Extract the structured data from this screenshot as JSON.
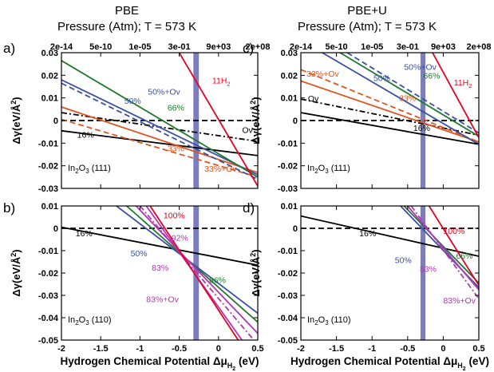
{
  "figure": {
    "col_titles": [
      "PBE",
      "PBE+U"
    ],
    "col_subtitles": [
      "Pressure (Atm); T = 573 K",
      "Pressure (Atm); T = 573 K"
    ],
    "xlabel": "Hydrogen Chemical Potential Δμ",
    "xlabel_sub": "H",
    "xlabel_sub2": "2",
    "xlabel_unit": " (eV)",
    "ylabel": "Δγ(eV/Å",
    "ylabel_sup": "2",
    "ylabel_close": ")"
  },
  "colors": {
    "black": "#000000",
    "red": "#e8001e",
    "green": "#1f7a2e",
    "blue": "#3b4fa8",
    "orange": "#e0541e",
    "purple": "#b236b5",
    "band": "#6d6fb5"
  },
  "chart_data": [
    {
      "id": "a",
      "type": "line",
      "panel_label": "a)",
      "surface": "In",
      "surface_sub": "2",
      "surface_rest": "O",
      "surface_sub2": "3",
      "surface_face": " (111)",
      "xlim": [
        -2,
        0.5
      ],
      "ylim": [
        -0.03,
        0.03
      ],
      "x_ticks": [
        -2,
        -1.5,
        -1,
        -0.5,
        0,
        0.5
      ],
      "x_tick_labels": [
        "-2",
        "-1.5",
        "-1",
        "-0.5",
        "0",
        "0.5"
      ],
      "y_ticks": [
        -0.03,
        -0.02,
        -0.01,
        0,
        0.01,
        0.02,
        0.03
      ],
      "y_tick_labels": [
        "-0.03",
        "-0.02",
        "-0.01",
        "0",
        "0.01",
        "0.02",
        "0.03"
      ],
      "top_axis": {
        "label": "Pressure (Atm); T = 573 K",
        "tick_labels": [
          "2e-14",
          "5e-10",
          "1e-05",
          "3e-01",
          "9e+03",
          "2e+08"
        ]
      },
      "vertical_band": [
        -0.32,
        -0.25
      ],
      "series": [
        {
          "name": "16%",
          "color": "black",
          "dash": "solid",
          "x": [
            -2,
            0.5
          ],
          "y": [
            -0.0045,
            -0.0155
          ]
        },
        {
          "name": "Ov",
          "color": "black",
          "dash": "dashdot",
          "x": [
            -2,
            0.5
          ],
          "y": [
            0.0035,
            -0.0092
          ]
        },
        {
          "name": "",
          "color": "black",
          "dash": "dash",
          "x": [
            -2,
            0.5
          ],
          "y": [
            0,
            0
          ]
        },
        {
          "name": "33%",
          "color": "orange",
          "dash": "solid",
          "x": [
            -2,
            0.5
          ],
          "y": [
            0.006,
            -0.023
          ]
        },
        {
          "name": "33%+Ov",
          "color": "orange",
          "dash": "dash",
          "x": [
            -2,
            0.5
          ],
          "y": [
            0.0005,
            -0.025
          ]
        },
        {
          "name": "50%",
          "color": "blue",
          "dash": "solid",
          "x": [
            -2,
            0.5
          ],
          "y": [
            0.018,
            -0.024
          ]
        },
        {
          "name": "50%+Ov",
          "color": "blue",
          "dash": "dash",
          "x": [
            -2,
            0.5
          ],
          "y": [
            0.0165,
            -0.026
          ]
        },
        {
          "name": "66%",
          "color": "green",
          "dash": "solid",
          "x": [
            -2,
            0.5
          ],
          "y": [
            0.0265,
            -0.025
          ]
        },
        {
          "name": "11H",
          "color": "red",
          "dash": "solid",
          "x": [
            -0.5,
            0.5
          ],
          "y": [
            0.03,
            -0.029
          ]
        }
      ],
      "labels": [
        {
          "text": "16%",
          "x": -1.8,
          "y": -0.0075,
          "color": "black"
        },
        {
          "text": "Ov",
          "x": 0.3,
          "y": -0.0055,
          "color": "black"
        },
        {
          "text": "33%",
          "x": -0.65,
          "y": -0.0135,
          "color": "orange"
        },
        {
          "text": "33%+Ov",
          "x": -0.18,
          "y": -0.0225,
          "color": "orange"
        },
        {
          "text": "50%",
          "x": -1.2,
          "y": 0.0075,
          "color": "blue"
        },
        {
          "text": "50%+Ov",
          "x": -0.9,
          "y": 0.0115,
          "color": "blue"
        },
        {
          "text": "66%",
          "x": -0.65,
          "y": 0.0045,
          "color": "green"
        },
        {
          "text": "11H",
          "sub": "2",
          "x": -0.08,
          "y": 0.0165,
          "color": "red"
        }
      ]
    },
    {
      "id": "b",
      "type": "line",
      "panel_label": "b)",
      "surface": "In",
      "surface_sub": "2",
      "surface_rest": "O",
      "surface_sub2": "3",
      "surface_face": " (110)",
      "xlim": [
        -2,
        0.5
      ],
      "ylim": [
        -0.05,
        0.01
      ],
      "x_ticks": [
        -2,
        -1.5,
        -1,
        -0.5,
        0,
        0.5
      ],
      "x_tick_labels": [
        "-2",
        "-1.5",
        "-1",
        "-0.5",
        "0",
        "0.5"
      ],
      "y_ticks": [
        -0.05,
        -0.04,
        -0.03,
        -0.02,
        -0.01,
        0,
        0.01
      ],
      "y_tick_labels": [
        "-0.05",
        "-0.04",
        "-0.03",
        "-0.02",
        "-0.01",
        "0",
        "0.01"
      ],
      "vertical_band": [
        -0.32,
        -0.25
      ],
      "series": [
        {
          "name": "",
          "color": "black",
          "dash": "dash",
          "x": [
            -2,
            0.5
          ],
          "y": [
            0,
            0
          ]
        },
        {
          "name": "16%",
          "color": "black",
          "dash": "solid",
          "x": [
            -2,
            0.5
          ],
          "y": [
            0.0005,
            -0.0165
          ]
        },
        {
          "name": "50%",
          "color": "blue",
          "dash": "solid",
          "x": [
            -1.3,
            0.5
          ],
          "y": [
            0.01,
            -0.038
          ]
        },
        {
          "name": "66%",
          "color": "green",
          "dash": "solid",
          "x": [
            -1.17,
            0.5
          ],
          "y": [
            0.01,
            -0.042
          ]
        },
        {
          "name": "83%",
          "color": "purple",
          "dash": "solid",
          "x": [
            -1.05,
            0.5
          ],
          "y": [
            0.01,
            -0.047
          ]
        },
        {
          "name": "83%+Ov",
          "color": "purple",
          "dash": "dashdot",
          "x": [
            -1.0,
            0.45
          ],
          "y": [
            0.01,
            -0.05
          ]
        },
        {
          "name": "92%",
          "color": "purple",
          "dash": "solid",
          "x": [
            -0.92,
            0.3
          ],
          "y": [
            0.01,
            -0.05
          ]
        },
        {
          "name": "100%",
          "color": "red",
          "dash": "solid",
          "x": [
            -0.87,
            0.25
          ],
          "y": [
            0.01,
            -0.05
          ]
        }
      ],
      "labels": [
        {
          "text": "16%",
          "x": -1.82,
          "y": -0.0035,
          "color": "black"
        },
        {
          "text": "100%",
          "x": -0.7,
          "y": 0.0045,
          "color": "red"
        },
        {
          "text": "92%",
          "x": -0.6,
          "y": -0.0055,
          "color": "purple"
        },
        {
          "text": "50%",
          "x": -1.12,
          "y": -0.0125,
          "color": "blue"
        },
        {
          "text": "83%",
          "x": -0.85,
          "y": -0.019,
          "color": "purple"
        },
        {
          "text": "66%",
          "x": -0.12,
          "y": -0.0245,
          "color": "green"
        },
        {
          "text": "83%+Ov",
          "x": -0.92,
          "y": -0.033,
          "color": "purple"
        }
      ]
    },
    {
      "id": "c",
      "type": "line",
      "panel_label": "c)",
      "surface": "In",
      "surface_sub": "2",
      "surface_rest": "O",
      "surface_sub2": "3",
      "surface_face": " (111)",
      "xlim": [
        -2,
        0.5
      ],
      "ylim": [
        -0.03,
        0.03
      ],
      "x_ticks": [
        -2,
        -1.5,
        -1,
        -0.5,
        0,
        0.5
      ],
      "x_tick_labels": [
        "-2",
        "-1.5",
        "-1",
        "-0.5",
        "0",
        "0.5"
      ],
      "y_ticks": [
        -0.03,
        -0.02,
        -0.01,
        0,
        0.01,
        0.02,
        0.03
      ],
      "y_tick_labels": [
        "-0.03",
        "-0.02",
        "-0.01",
        "0",
        "0.01",
        "0.02",
        "0.03"
      ],
      "top_axis": {
        "label": "Pressure (Atm); T = 573 K",
        "tick_labels": [
          "2e-14",
          "5e-10",
          "1e-05",
          "3e-01",
          "9e+03",
          "2e+08"
        ]
      },
      "vertical_band": [
        -0.32,
        -0.25
      ],
      "series": [
        {
          "name": "",
          "color": "black",
          "dash": "dash",
          "x": [
            -2,
            0.5
          ],
          "y": [
            0,
            0
          ]
        },
        {
          "name": "16%",
          "color": "black",
          "dash": "solid",
          "x": [
            -2,
            0.5
          ],
          "y": [
            0.0035,
            -0.0105
          ]
        },
        {
          "name": "Ov",
          "color": "black",
          "dash": "dashdot",
          "x": [
            -2,
            0.5
          ],
          "y": [
            0.0095,
            -0.0065
          ]
        },
        {
          "name": "33%",
          "color": "orange",
          "dash": "solid",
          "x": [
            -2,
            0.5
          ],
          "y": [
            0.0175,
            -0.0095
          ]
        },
        {
          "name": "33%+Ov",
          "color": "orange",
          "dash": "dash",
          "x": [
            -2,
            0.5
          ],
          "y": [
            0.0225,
            -0.0095
          ]
        },
        {
          "name": "50%",
          "color": "blue",
          "dash": "solid",
          "x": [
            -1.7,
            0.5
          ],
          "y": [
            0.03,
            -0.0105
          ]
        },
        {
          "name": "50%+Ov",
          "color": "blue",
          "dash": "dash",
          "x": [
            -1.35,
            0.5
          ],
          "y": [
            0.03,
            -0.0055
          ]
        },
        {
          "name": "66%",
          "color": "green",
          "dash": "solid",
          "x": [
            -1.45,
            0.5
          ],
          "y": [
            0.03,
            -0.007
          ]
        },
        {
          "name": "11H",
          "color": "red",
          "dash": "solid",
          "x": [
            -0.15,
            0.5
          ],
          "y": [
            0.03,
            -0.0075
          ]
        }
      ],
      "labels": [
        {
          "text": "Ov",
          "x": -1.9,
          "y": 0.0085,
          "color": "black"
        },
        {
          "text": "16%",
          "x": -0.42,
          "y": -0.0045,
          "color": "black"
        },
        {
          "text": "33%+Ov",
          "x": -1.92,
          "y": 0.0195,
          "color": "orange"
        },
        {
          "text": "33%",
          "x": -0.62,
          "y": 0.0087,
          "color": "orange"
        },
        {
          "text": "50%",
          "x": -0.98,
          "y": 0.0175,
          "color": "blue"
        },
        {
          "text": "50%+Ov",
          "x": -0.55,
          "y": 0.0225,
          "color": "blue"
        },
        {
          "text": "66%",
          "x": -0.28,
          "y": 0.0185,
          "color": "green"
        },
        {
          "text": "11H",
          "sub": "2",
          "x": 0.15,
          "y": 0.0155,
          "color": "red"
        }
      ]
    },
    {
      "id": "d",
      "type": "line",
      "panel_label": "d)",
      "surface": "In",
      "surface_sub": "2",
      "surface_rest": "O",
      "surface_sub2": "3",
      "surface_face": " (110)",
      "xlim": [
        -2,
        0.5
      ],
      "ylim": [
        -0.05,
        0.01
      ],
      "x_ticks": [
        -2,
        -1.5,
        -1,
        -0.5,
        0,
        0.5
      ],
      "x_tick_labels": [
        "-2",
        "-1.5",
        "-1",
        "-0.5",
        "0",
        "0.5"
      ],
      "y_ticks": [
        -0.05,
        -0.04,
        -0.03,
        -0.02,
        -0.01,
        0,
        0.01
      ],
      "y_tick_labels": [
        "-0.05",
        "-0.04",
        "-0.03",
        "-0.02",
        "-0.01",
        "0",
        "0.01"
      ],
      "vertical_band": [
        -0.32,
        -0.25
      ],
      "series": [
        {
          "name": "",
          "color": "black",
          "dash": "dash",
          "x": [
            -2,
            0.5
          ],
          "y": [
            0,
            0
          ]
        },
        {
          "name": "16%",
          "color": "black",
          "dash": "solid",
          "x": [
            -2,
            0.5
          ],
          "y": [
            0.0055,
            -0.0125
          ]
        },
        {
          "name": "50%",
          "color": "blue",
          "dash": "solid",
          "x": [
            -0.6,
            0.5
          ],
          "y": [
            0.01,
            -0.0265
          ]
        },
        {
          "name": "66%",
          "color": "green",
          "dash": "solid",
          "x": [
            -0.55,
            0.5
          ],
          "y": [
            0.01,
            -0.0245
          ]
        },
        {
          "name": "83%",
          "color": "purple",
          "dash": "solid",
          "x": [
            -0.5,
            0.5
          ],
          "y": [
            0.01,
            -0.0275
          ]
        },
        {
          "name": "83%+Ov",
          "color": "purple",
          "dash": "dashdot",
          "x": [
            -0.45,
            0.5
          ],
          "y": [
            0.01,
            -0.0315
          ]
        },
        {
          "name": "100%",
          "color": "red",
          "dash": "solid",
          "x": [
            -0.2,
            0.5
          ],
          "y": [
            0.01,
            -0.0255
          ]
        }
      ],
      "labels": [
        {
          "text": "16%",
          "x": -1.18,
          "y": -0.0035,
          "color": "black"
        },
        {
          "text": "100%",
          "x": 0.0,
          "y": -0.0025,
          "color": "red"
        },
        {
          "text": "50%",
          "x": -0.68,
          "y": -0.0155,
          "color": "blue"
        },
        {
          "text": "83%",
          "x": -0.33,
          "y": -0.0195,
          "color": "purple"
        },
        {
          "text": "66%",
          "x": 0.18,
          "y": -0.0135,
          "color": "green"
        },
        {
          "text": "83%+Ov",
          "x": 0.0,
          "y": -0.0335,
          "color": "purple"
        }
      ]
    }
  ]
}
